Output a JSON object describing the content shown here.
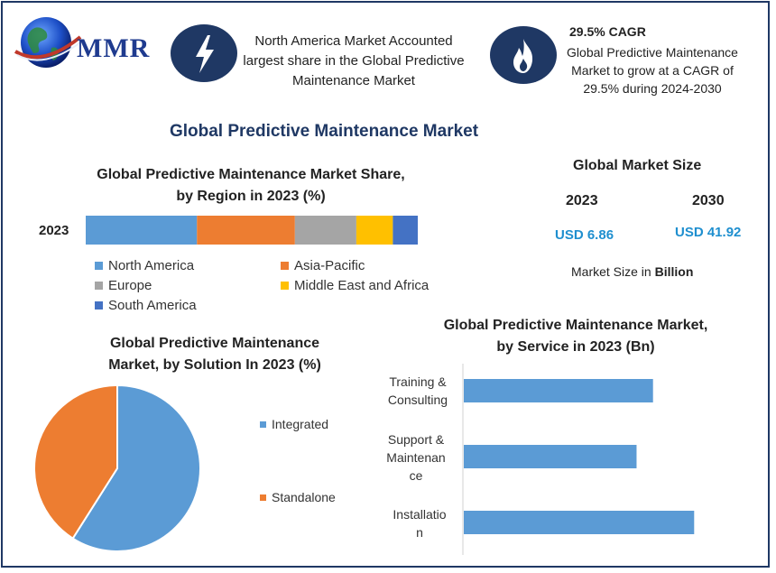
{
  "logo": {
    "text": "MMR"
  },
  "header": {
    "north_america_note": "North America Market Accounted largest share in the Global Predictive Maintenance Market",
    "cagr_title": "29.5% CAGR",
    "cagr_note": "Global Predictive Maintenance Market to grow at a CAGR of 29.5% during 2024-2030",
    "icons": [
      "lightning-icon",
      "flame-icon"
    ]
  },
  "main_title": "Global Predictive Maintenance Market",
  "market_size": {
    "title": "Global Market Size",
    "year_1": "2023",
    "year_2": "2030",
    "value_1": "USD 6.86",
    "value_2": "USD 41.92",
    "unit_prefix": "Market Size in",
    "unit_bold": "Billion"
  },
  "colors": {
    "navy": "#1f3864",
    "north_america": "#5b9bd5",
    "asia_pacific": "#ed7d31",
    "europe": "#a5a5a5",
    "mea": "#ffc000",
    "south_america": "#4472c4",
    "usd": "#1f8fcf"
  },
  "chart_data": [
    {
      "type": "bar",
      "orientation": "horizontal-stacked",
      "title_line1": "Global Predictive Maintenance Market Share,",
      "title_line2": "by Region in 2023 (%)",
      "categories": [
        "2023"
      ],
      "series": [
        {
          "name": "North America",
          "values": [
            33.5
          ],
          "color": "#5b9bd5"
        },
        {
          "name": "Asia-Pacific",
          "values": [
            29.5
          ],
          "color": "#ed7d31"
        },
        {
          "name": "Europe",
          "values": [
            18.5
          ],
          "color": "#a5a5a5"
        },
        {
          "name": "Middle East and Africa",
          "values": [
            11.0
          ],
          "color": "#ffc000"
        },
        {
          "name": "South America",
          "values": [
            7.5
          ],
          "color": "#4472c4"
        }
      ],
      "legend": "bottom"
    },
    {
      "type": "pie",
      "title_line1": "Global Predictive Maintenance",
      "title_line2": "Market, by Solution In 2023 (%)",
      "slices": [
        {
          "name": "Integrated",
          "value": 59,
          "color": "#5b9bd5"
        },
        {
          "name": "Standalone",
          "value": 41,
          "color": "#ed7d31"
        }
      ],
      "legend": "right"
    },
    {
      "type": "bar",
      "orientation": "horizontal",
      "title_line1": "Global Predictive Maintenance Market,",
      "title_line2": "by Service in 2023 (Bn)",
      "categories": [
        [
          "Training &",
          "Consulting"
        ],
        [
          "Support &",
          "Maintenan",
          "ce"
        ],
        [
          "Installatio",
          "n"
        ]
      ],
      "values": [
        2.3,
        2.1,
        2.8
      ],
      "xlim": [
        0,
        3.4
      ],
      "color": "#5b9bd5"
    }
  ]
}
